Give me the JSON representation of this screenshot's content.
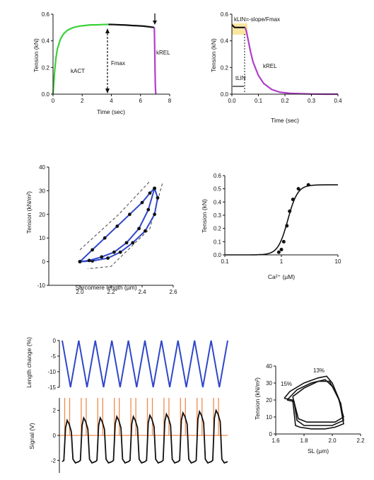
{
  "chart_data": [
    {
      "id": "A",
      "type": "line",
      "xlabel": "Time (sec)",
      "ylabel": "Tension (kN)",
      "xlim": [
        0,
        8
      ],
      "ylim": [
        0,
        0.6
      ],
      "xticks": [
        "0",
        "2",
        "4",
        "6",
        "8"
      ],
      "yticks": [
        "0.0",
        "0.2",
        "0.4",
        "0.6"
      ],
      "series": [
        {
          "color": "#3ad13a",
          "x": [
            0,
            0.1,
            0.2,
            0.3,
            0.5,
            0.7,
            1.0,
            1.4,
            1.8,
            2.2,
            2.6,
            3.0,
            3.4,
            3.8
          ],
          "y": [
            0,
            0.16,
            0.27,
            0.34,
            0.41,
            0.45,
            0.48,
            0.5,
            0.51,
            0.515,
            0.52,
            0.52,
            0.522,
            0.523
          ]
        },
        {
          "color": "#111111",
          "x": [
            3.8,
            4.2,
            4.6,
            5.0,
            5.4,
            5.8,
            6.2,
            6.6,
            6.95
          ],
          "y": [
            0.523,
            0.522,
            0.52,
            0.518,
            0.515,
            0.513,
            0.51,
            0.505,
            0.5
          ]
        },
        {
          "color": "#b03fc9",
          "x": [
            6.95,
            6.97,
            7.0,
            7.02,
            7.05
          ],
          "y": [
            0.5,
            0.35,
            0.15,
            0.05,
            0.0
          ]
        }
      ],
      "annotations": {
        "ktr": "kACT",
        "fmax": "Fmax",
        "krel": "kREL"
      }
    },
    {
      "id": "B",
      "type": "line",
      "xlabel": "Time (sec)",
      "ylabel": "Tension (kN)",
      "xlim": [
        0,
        0.4
      ],
      "ylim": [
        0,
        0.6
      ],
      "xticks": [
        "0.0",
        "0.1",
        "0.2",
        "0.3",
        "0.4"
      ],
      "yticks": [
        "0.0",
        "0.2",
        "0.4",
        "0.6"
      ],
      "series": [
        {
          "color": "#111111",
          "x": [
            0,
            0.01,
            0.02,
            0.03,
            0.04,
            0.05
          ],
          "y": [
            0.52,
            0.5,
            0.5,
            0.5,
            0.5,
            0.5
          ]
        },
        {
          "color": "#b03fc9",
          "x": [
            0.05,
            0.055,
            0.06,
            0.07,
            0.08,
            0.1,
            0.12,
            0.15,
            0.18,
            0.22,
            0.26,
            0.3,
            0.35,
            0.4
          ],
          "y": [
            0.5,
            0.47,
            0.42,
            0.32,
            0.24,
            0.14,
            0.08,
            0.035,
            0.015,
            0.006,
            0.003,
            0.001,
            0,
            0
          ]
        }
      ],
      "annotations": {
        "slope_label": "kLIN=-slope/Fmax",
        "krel": "kREL",
        "tlin": "tLIN"
      }
    },
    {
      "id": "C",
      "type": "line",
      "xlabel": "Sarcomere length (µm)",
      "ylabel": "Tension (kN/m²)",
      "xlim": [
        1.8,
        2.6
      ],
      "ylim": [
        -10,
        40
      ],
      "xticks": [
        "2.0",
        "2.2",
        "2.4",
        "2.6"
      ],
      "yticks": [
        "-10",
        "0",
        "10",
        "20",
        "30",
        "40"
      ],
      "series": [
        {
          "color": "#2f47c8",
          "x": [
            2.0,
            2.08,
            2.16,
            2.24,
            2.32,
            2.4,
            2.45,
            2.48
          ],
          "y": [
            0,
            5,
            10,
            15,
            20,
            25,
            29,
            31
          ]
        },
        {
          "color": "#2f47c8",
          "x": [
            2.48,
            2.5,
            2.48,
            2.42,
            2.34,
            2.26,
            2.18,
            2.08,
            2.0
          ],
          "y": [
            31,
            27,
            20,
            13,
            8,
            4,
            1.5,
            0.3,
            0
          ]
        },
        {
          "color": "#2f47c8",
          "x": [
            2.48,
            2.44,
            2.38,
            2.3,
            2.22,
            2.14,
            2.06,
            2.0
          ],
          "y": [
            31,
            22,
            14,
            8,
            4,
            2,
            0.5,
            0
          ]
        }
      ]
    },
    {
      "id": "D",
      "type": "scatter",
      "xlabel": "Ca²⁺ (µM)",
      "ylabel": "Tension (kN)",
      "xscale": "log",
      "xlim": [
        0.1,
        10
      ],
      "ylim": [
        0,
        0.6
      ],
      "xticks": [
        "0.1",
        "1",
        "10"
      ],
      "yticks": [
        "0.0",
        "0.1",
        "0.2",
        "0.3",
        "0.4",
        "0.5",
        "0.6"
      ],
      "points": {
        "x": [
          0.9,
          1.0,
          1.1,
          1.25,
          1.4,
          1.6,
          2.0,
          3.0
        ],
        "y": [
          0.02,
          0.04,
          0.1,
          0.22,
          0.33,
          0.42,
          0.5,
          0.53
        ]
      },
      "fit": {
        "ec50": 1.3,
        "hill": 5,
        "max": 0.53
      }
    },
    {
      "id": "E",
      "type": "line",
      "ylabel": "Length change (%)",
      "xlim": [
        0,
        10
      ],
      "ylim": [
        -15,
        0
      ],
      "yticks": [
        "0",
        "-5",
        "-10",
        "-15"
      ],
      "cycles": 10,
      "amplitude": -15,
      "series": [
        {
          "color": "#2f47c8"
        }
      ]
    },
    {
      "id": "F",
      "type": "line",
      "ylabel": "Signal (V)",
      "xlim": [
        0,
        10
      ],
      "ylim": [
        -3,
        3
      ],
      "yticks": [
        "2",
        "0",
        "-2"
      ],
      "stim_color": "#f08a4b",
      "series": [
        {
          "color": "#111111",
          "peaks": [
            1.2,
            1.4,
            1.4,
            1.5,
            1.5,
            1.6,
            1.7,
            1.8,
            1.9,
            2.0
          ],
          "baseline": -2.1
        }
      ]
    },
    {
      "id": "G",
      "type": "line",
      "xlabel": "SL (µm)",
      "ylabel": "Tension (kN/m²)",
      "xlim": [
        1.6,
        2.2
      ],
      "ylim": [
        0,
        40
      ],
      "xticks": [
        "1.6",
        "1.8",
        "2.0",
        "2.2"
      ],
      "yticks": [
        "0",
        "10",
        "20",
        "30",
        "40"
      ],
      "annotations": [
        "15%",
        "13%"
      ],
      "series": [
        {
          "color": "#111111"
        }
      ]
    }
  ]
}
